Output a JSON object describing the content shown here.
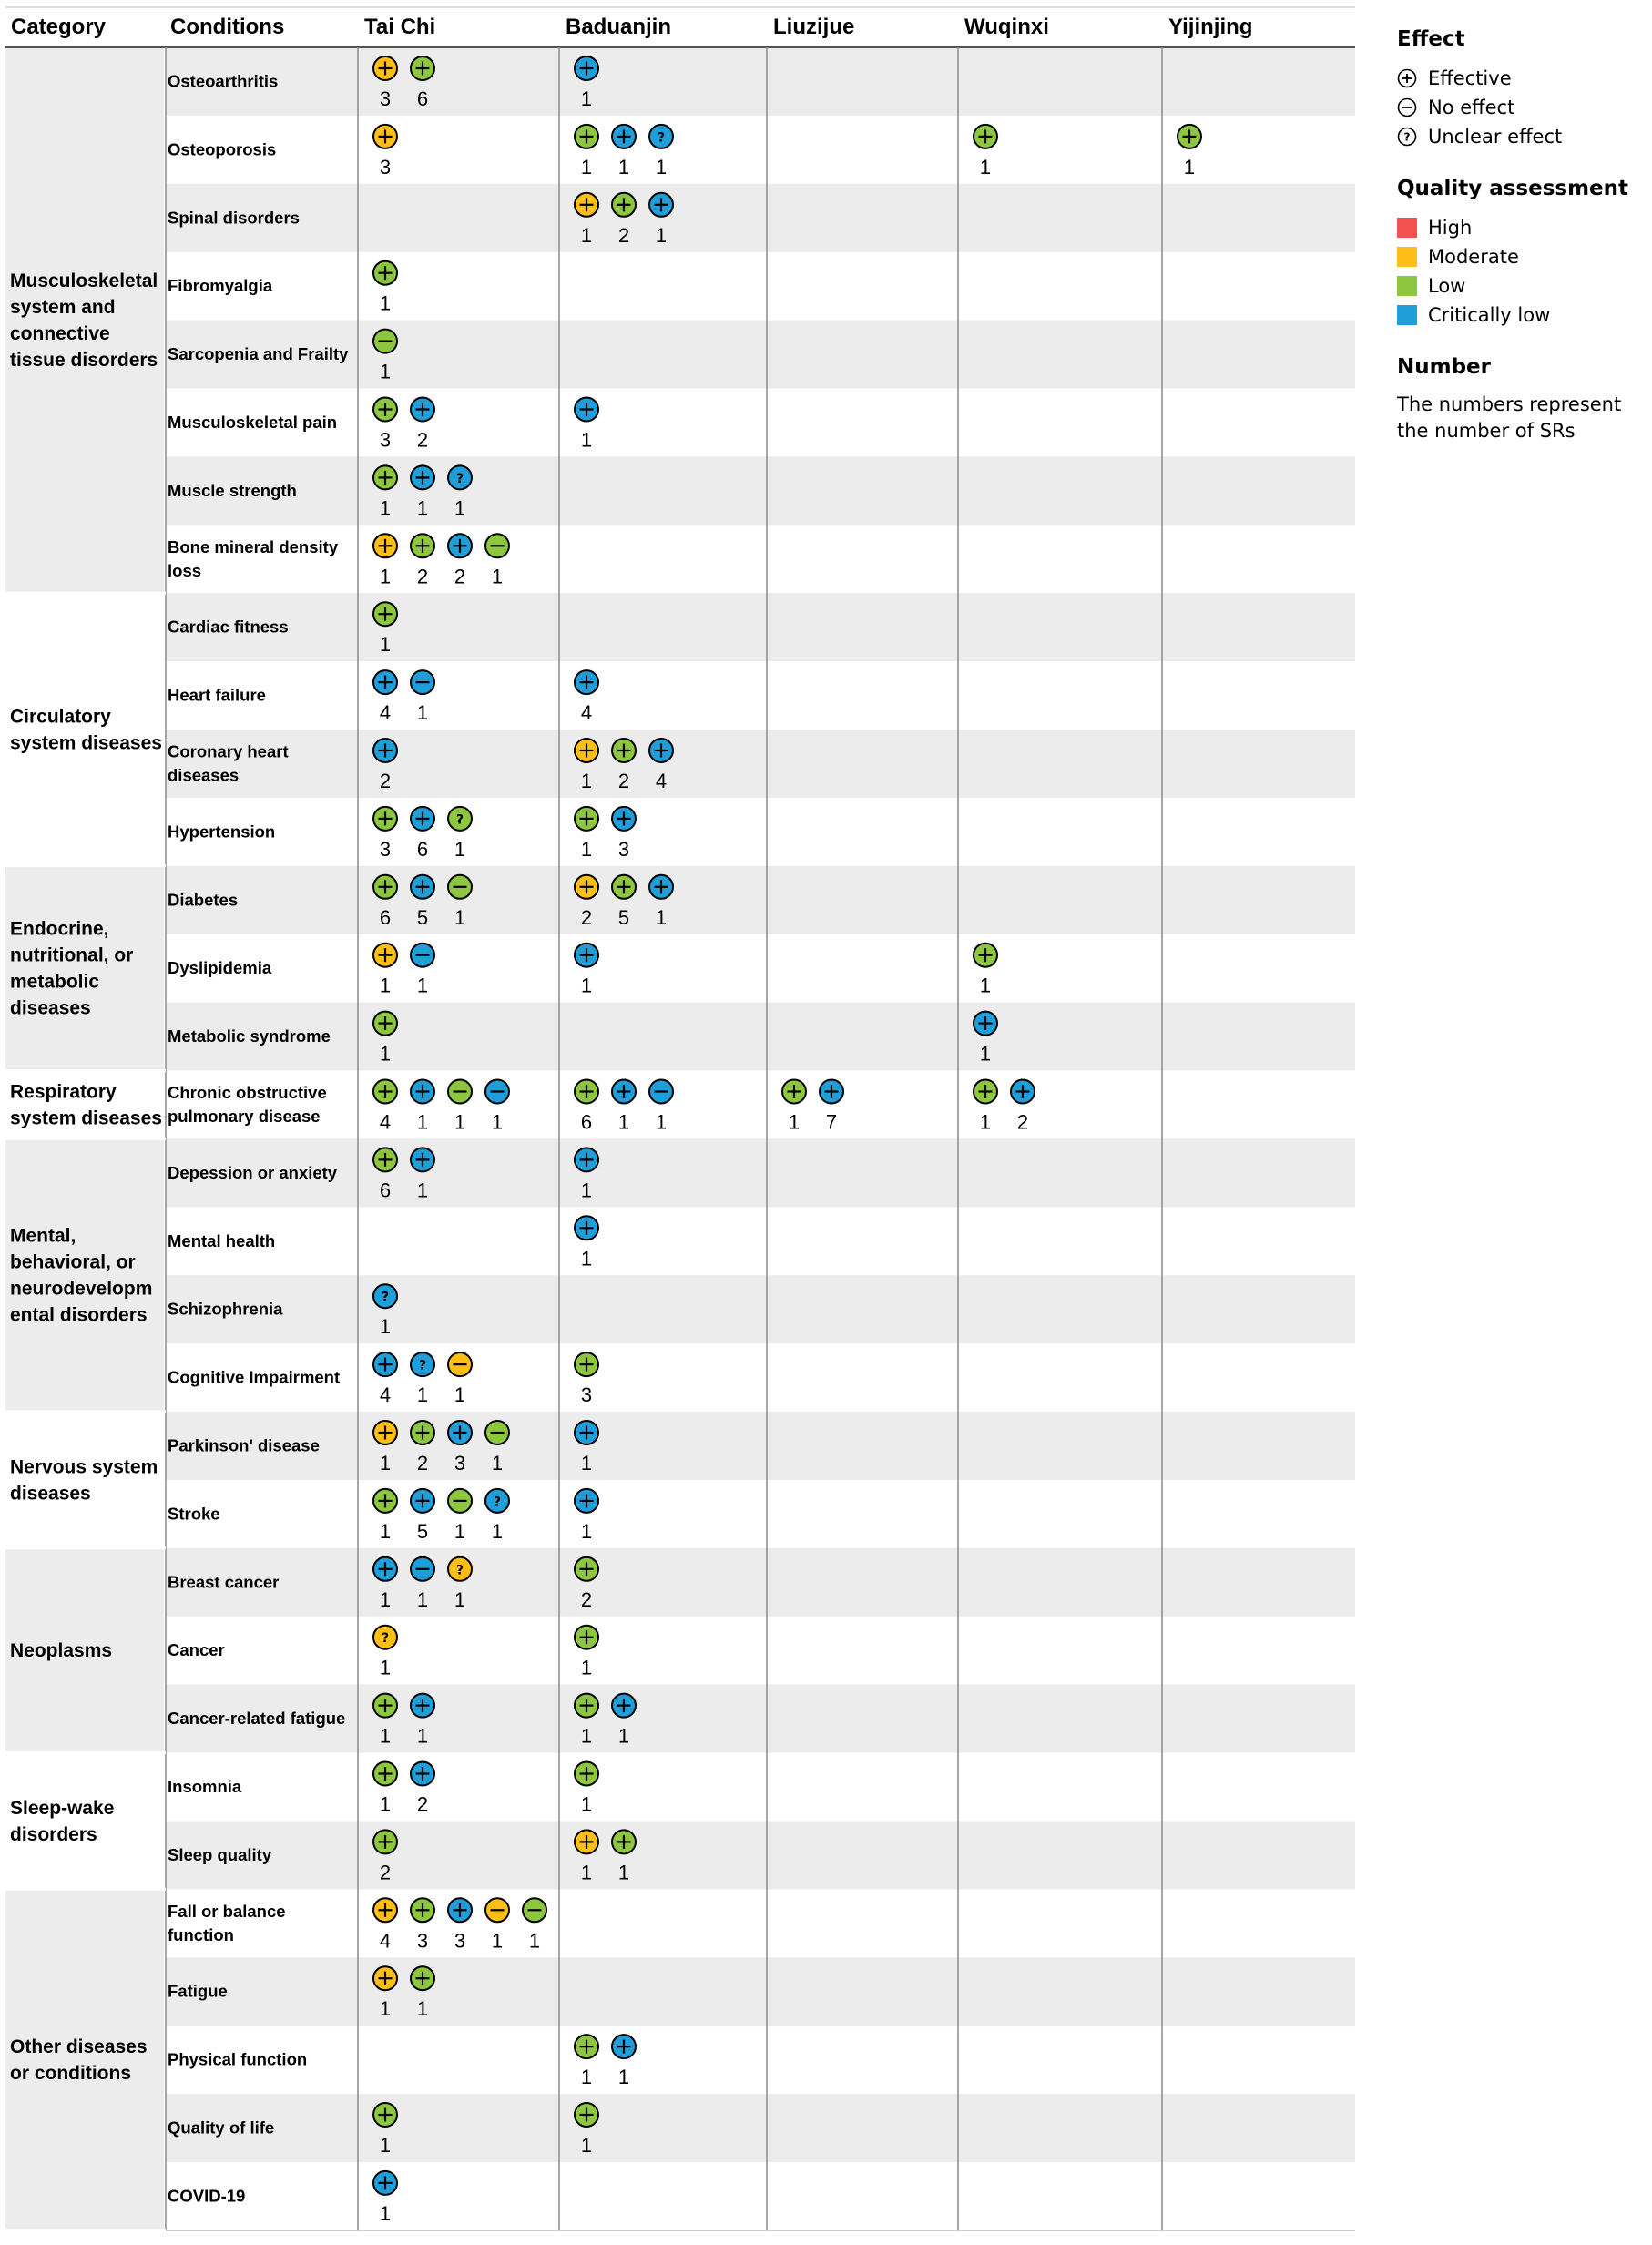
{
  "chart_data": {
    "type": "table",
    "title": "",
    "header": {
      "category": "Category",
      "conditions": "Conditions",
      "exercises": [
        "Tai Chi",
        "Baduanjin",
        "Liuzijue",
        "Wuqinxi",
        "Yijinjing"
      ]
    },
    "categories": [
      {
        "name_lines": [
          "Musculoskeletal",
          "system and",
          "connective",
          "tissue disorders"
        ],
        "rows": [
          0,
          7
        ]
      },
      {
        "name_lines": [
          "Circulatory",
          "system diseases"
        ],
        "rows": [
          8,
          11
        ]
      },
      {
        "name_lines": [
          "Endocrine,",
          "nutritional, or",
          "metabolic",
          "diseases"
        ],
        "rows": [
          12,
          14
        ]
      },
      {
        "name_lines": [
          "Respiratory",
          "system diseases"
        ],
        "rows": [
          15,
          15
        ]
      },
      {
        "name_lines": [
          "Mental,",
          "behavioral, or",
          "neurodevelopm",
          "ental disorders"
        ],
        "rows": [
          16,
          19
        ]
      },
      {
        "name_lines": [
          "Nervous system",
          "diseases"
        ],
        "rows": [
          20,
          21
        ]
      },
      {
        "name_lines": [
          "Neoplasms"
        ],
        "rows": [
          22,
          24
        ]
      },
      {
        "name_lines": [
          "Sleep-wake",
          "disorders"
        ],
        "rows": [
          25,
          26
        ]
      },
      {
        "name_lines": [
          "Other diseases",
          "or conditions"
        ],
        "rows": [
          27,
          31
        ]
      }
    ],
    "rows": [
      {
        "condition": [
          "Osteoarthritis"
        ],
        "cells": [
          [
            [
              "M",
              "E",
              3
            ],
            [
              "L",
              "E",
              6
            ]
          ],
          [
            [
              "C",
              "E",
              1
            ]
          ],
          [],
          [],
          []
        ]
      },
      {
        "condition": [
          "Osteoporosis"
        ],
        "cells": [
          [
            [
              "M",
              "E",
              3
            ]
          ],
          [
            [
              "L",
              "E",
              1
            ],
            [
              "C",
              "E",
              1
            ],
            [
              "C",
              "U",
              1
            ]
          ],
          [],
          [
            [
              "L",
              "E",
              1
            ]
          ],
          [
            [
              "L",
              "E",
              1
            ]
          ]
        ]
      },
      {
        "condition": [
          "Spinal disorders"
        ],
        "cells": [
          [],
          [
            [
              "M",
              "E",
              1
            ],
            [
              "L",
              "E",
              2
            ],
            [
              "C",
              "E",
              1
            ]
          ],
          [],
          [],
          []
        ]
      },
      {
        "condition": [
          "Fibromyalgia"
        ],
        "cells": [
          [
            [
              "L",
              "E",
              1
            ]
          ],
          [],
          [],
          [],
          []
        ]
      },
      {
        "condition": [
          "Sarcopenia and Frailty"
        ],
        "cells": [
          [
            [
              "L",
              "N",
              1
            ]
          ],
          [],
          [],
          [],
          []
        ]
      },
      {
        "condition": [
          "Musculoskeletal pain"
        ],
        "cells": [
          [
            [
              "L",
              "E",
              3
            ],
            [
              "C",
              "E",
              2
            ]
          ],
          [
            [
              "C",
              "E",
              1
            ]
          ],
          [],
          [],
          []
        ]
      },
      {
        "condition": [
          "Muscle strength"
        ],
        "cells": [
          [
            [
              "L",
              "E",
              1
            ],
            [
              "C",
              "E",
              1
            ],
            [
              "C",
              "U",
              1
            ]
          ],
          [],
          [],
          [],
          []
        ]
      },
      {
        "condition": [
          "Bone mineral density",
          "loss"
        ],
        "cells": [
          [
            [
              "M",
              "E",
              1
            ],
            [
              "L",
              "E",
              2
            ],
            [
              "C",
              "E",
              2
            ],
            [
              "L",
              "N",
              1
            ]
          ],
          [],
          [],
          [],
          []
        ]
      },
      {
        "condition": [
          "Cardiac fitness"
        ],
        "cells": [
          [
            [
              "L",
              "E",
              1
            ]
          ],
          [],
          [],
          [],
          []
        ]
      },
      {
        "condition": [
          "Heart failure"
        ],
        "cells": [
          [
            [
              "C",
              "E",
              4
            ],
            [
              "C",
              "N",
              1
            ]
          ],
          [
            [
              "C",
              "E",
              4
            ]
          ],
          [],
          [],
          []
        ]
      },
      {
        "condition": [
          "Coronary heart",
          "diseases"
        ],
        "cells": [
          [
            [
              "C",
              "E",
              2
            ]
          ],
          [
            [
              "M",
              "E",
              1
            ],
            [
              "L",
              "E",
              2
            ],
            [
              "C",
              "E",
              4
            ]
          ],
          [],
          [],
          []
        ]
      },
      {
        "condition": [
          "Hypertension"
        ],
        "cells": [
          [
            [
              "L",
              "E",
              3
            ],
            [
              "C",
              "E",
              6
            ],
            [
              "L",
              "U",
              1
            ]
          ],
          [
            [
              "L",
              "E",
              1
            ],
            [
              "C",
              "E",
              3
            ]
          ],
          [],
          [],
          []
        ]
      },
      {
        "condition": [
          "Diabetes"
        ],
        "cells": [
          [
            [
              "L",
              "E",
              6
            ],
            [
              "C",
              "E",
              5
            ],
            [
              "L",
              "N",
              1
            ]
          ],
          [
            [
              "M",
              "E",
              2
            ],
            [
              "L",
              "E",
              5
            ],
            [
              "C",
              "E",
              1
            ]
          ],
          [],
          [],
          []
        ]
      },
      {
        "condition": [
          "Dyslipidemia"
        ],
        "cells": [
          [
            [
              "M",
              "E",
              1
            ],
            [
              "C",
              "N",
              1
            ]
          ],
          [
            [
              "C",
              "E",
              1
            ]
          ],
          [],
          [
            [
              "L",
              "E",
              1
            ]
          ],
          []
        ]
      },
      {
        "condition": [
          "Metabolic syndrome"
        ],
        "cells": [
          [
            [
              "L",
              "E",
              1
            ]
          ],
          [],
          [],
          [
            [
              "C",
              "E",
              1
            ]
          ],
          []
        ]
      },
      {
        "condition": [
          "Chronic obstructive",
          "pulmonary disease"
        ],
        "cells": [
          [
            [
              "L",
              "E",
              4
            ],
            [
              "C",
              "E",
              1
            ],
            [
              "L",
              "N",
              1
            ],
            [
              "C",
              "N",
              1
            ]
          ],
          [
            [
              "L",
              "E",
              6
            ],
            [
              "C",
              "E",
              1
            ],
            [
              "C",
              "N",
              1
            ]
          ],
          [
            [
              "L",
              "E",
              1
            ],
            [
              "C",
              "E",
              7
            ]
          ],
          [
            [
              "L",
              "E",
              1
            ],
            [
              "C",
              "E",
              2
            ]
          ],
          []
        ]
      },
      {
        "condition": [
          "Depession or anxiety"
        ],
        "cells": [
          [
            [
              "L",
              "E",
              6
            ],
            [
              "C",
              "E",
              1
            ]
          ],
          [
            [
              "C",
              "E",
              1
            ]
          ],
          [],
          [],
          []
        ]
      },
      {
        "condition": [
          "Mental health"
        ],
        "cells": [
          [],
          [
            [
              "C",
              "E",
              1
            ]
          ],
          [],
          [],
          []
        ]
      },
      {
        "condition": [
          "Schizophrenia"
        ],
        "cells": [
          [
            [
              "C",
              "U",
              1
            ]
          ],
          [],
          [],
          [],
          []
        ]
      },
      {
        "condition": [
          "Cognitive Impairment"
        ],
        "cells": [
          [
            [
              "C",
              "E",
              4
            ],
            [
              "C",
              "U",
              1
            ],
            [
              "M",
              "N",
              1
            ]
          ],
          [
            [
              "L",
              "E",
              3
            ]
          ],
          [],
          [],
          []
        ]
      },
      {
        "condition": [
          "Parkinson' disease"
        ],
        "cells": [
          [
            [
              "M",
              "E",
              1
            ],
            [
              "L",
              "E",
              2
            ],
            [
              "C",
              "E",
              3
            ],
            [
              "L",
              "N",
              1
            ]
          ],
          [
            [
              "C",
              "E",
              1
            ]
          ],
          [],
          [],
          []
        ]
      },
      {
        "condition": [
          "Stroke"
        ],
        "cells": [
          [
            [
              "L",
              "E",
              1
            ],
            [
              "C",
              "E",
              5
            ],
            [
              "L",
              "N",
              1
            ],
            [
              "C",
              "U",
              1
            ]
          ],
          [
            [
              "C",
              "E",
              1
            ]
          ],
          [],
          [],
          []
        ]
      },
      {
        "condition": [
          "Breast cancer"
        ],
        "cells": [
          [
            [
              "C",
              "E",
              1
            ],
            [
              "C",
              "N",
              1
            ],
            [
              "M",
              "U",
              1
            ]
          ],
          [
            [
              "L",
              "E",
              2
            ]
          ],
          [],
          [],
          []
        ]
      },
      {
        "condition": [
          "Cancer"
        ],
        "cells": [
          [
            [
              "M",
              "U",
              1
            ]
          ],
          [
            [
              "L",
              "E",
              1
            ]
          ],
          [],
          [],
          []
        ]
      },
      {
        "condition": [
          "Cancer-related fatigue"
        ],
        "cells": [
          [
            [
              "L",
              "E",
              1
            ],
            [
              "C",
              "E",
              1
            ]
          ],
          [
            [
              "L",
              "E",
              1
            ],
            [
              "C",
              "E",
              1
            ]
          ],
          [],
          [],
          []
        ]
      },
      {
        "condition": [
          "Insomnia"
        ],
        "cells": [
          [
            [
              "L",
              "E",
              1
            ],
            [
              "C",
              "E",
              2
            ]
          ],
          [
            [
              "L",
              "E",
              1
            ]
          ],
          [],
          [],
          []
        ]
      },
      {
        "condition": [
          "Sleep quality"
        ],
        "cells": [
          [
            [
              "L",
              "E",
              2
            ]
          ],
          [
            [
              "M",
              "E",
              1
            ],
            [
              "L",
              "E",
              1
            ]
          ],
          [],
          [],
          []
        ]
      },
      {
        "condition": [
          "Fall or balance",
          "function"
        ],
        "cells": [
          [
            [
              "M",
              "E",
              4
            ],
            [
              "L",
              "E",
              3
            ],
            [
              "C",
              "E",
              3
            ],
            [
              "M",
              "N",
              1
            ],
            [
              "L",
              "N",
              1
            ]
          ],
          [],
          [],
          [],
          []
        ]
      },
      {
        "condition": [
          "Fatigue"
        ],
        "cells": [
          [
            [
              "M",
              "E",
              1
            ],
            [
              "L",
              "E",
              1
            ]
          ],
          [],
          [],
          [],
          []
        ]
      },
      {
        "condition": [
          "Physical function"
        ],
        "cells": [
          [],
          [
            [
              "L",
              "E",
              1
            ],
            [
              "C",
              "E",
              1
            ]
          ],
          [],
          [],
          []
        ]
      },
      {
        "condition": [
          "Quality of life"
        ],
        "cells": [
          [
            [
              "L",
              "E",
              1
            ]
          ],
          [
            [
              "L",
              "E",
              1
            ]
          ],
          [],
          [],
          []
        ]
      },
      {
        "condition": [
          "COVID-19"
        ],
        "cells": [
          [
            [
              "C",
              "E",
              1
            ]
          ],
          [],
          [],
          [],
          []
        ]
      }
    ],
    "legend": {
      "effect_title": "Effect",
      "effect_items": [
        {
          "symbol": "E",
          "label": "Effective"
        },
        {
          "symbol": "N",
          "label": "No effect"
        },
        {
          "symbol": "U",
          "label": "Unclear effect"
        }
      ],
      "quality_title": "Quality assessment",
      "quality_items": [
        {
          "code": "H",
          "label": "High",
          "color": "#f0534f"
        },
        {
          "code": "M",
          "label": "Moderate",
          "color": "#fdbf16"
        },
        {
          "code": "L",
          "label": "Low",
          "color": "#8dc63f"
        },
        {
          "code": "C",
          "label": "Critically low",
          "color": "#1f9ed9"
        }
      ],
      "number_title": "Number",
      "number_text": "The numbers represent the number of SRs"
    },
    "colors": {
      "row_shade": "#ececec",
      "category_shade": "#ececec",
      "grid": "#8a8a8a"
    }
  }
}
